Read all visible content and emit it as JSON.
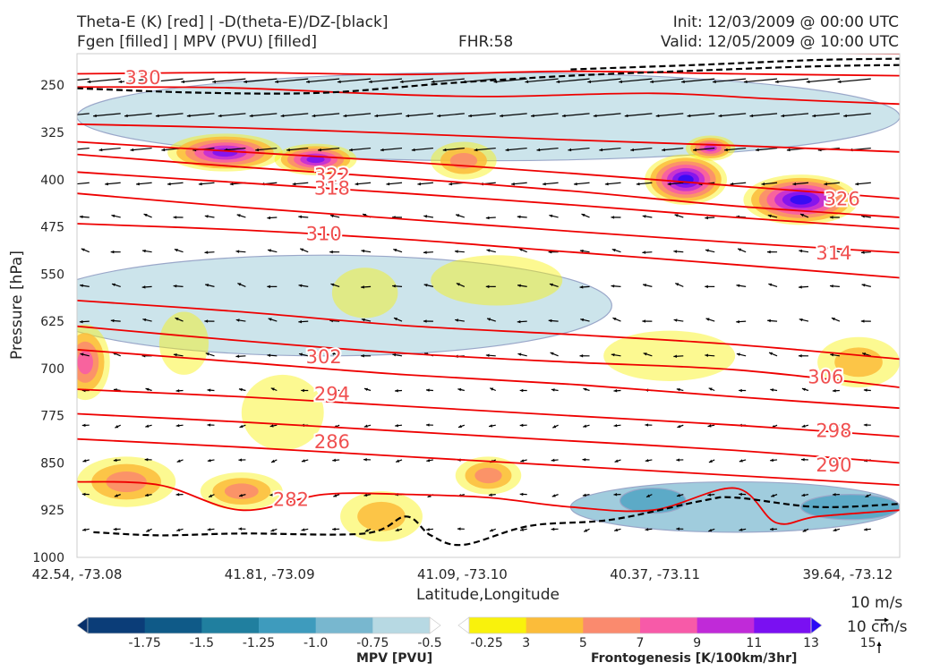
{
  "header": {
    "title_left_1": "Theta-E (K) [red] | -D(theta-E)/DZ-[black]",
    "title_left_2": "Fgen [filled] | MPV (PVU) [filled]",
    "fhr": "FHR:58",
    "init": "Init: 12/03/2009 @ 00:00 UTC",
    "valid": "Valid: 12/05/2009 @ 10:00 UTC"
  },
  "chart_data": {
    "type": "cross-section",
    "xlabel": "Latitude,Longitude",
    "ylabel": "Pressure [hPa]",
    "x_ticks": [
      "42.54, -73.08",
      "41.81, -73.09",
      "41.09, -73.10",
      "40.37, -73.11",
      "39.64, -73.12"
    ],
    "y_ticks": [
      250,
      325,
      400,
      475,
      550,
      625,
      700,
      775,
      850,
      925,
      1000
    ],
    "ylim": [
      200,
      1000
    ],
    "theta_e_labels": [
      {
        "value": "330",
        "x": 0.08,
        "p": 240
      },
      {
        "value": "322",
        "x": 0.31,
        "p": 395
      },
      {
        "value": "318",
        "x": 0.31,
        "p": 415
      },
      {
        "value": "326",
        "x": 0.93,
        "p": 432
      },
      {
        "value": "310",
        "x": 0.3,
        "p": 488
      },
      {
        "value": "314",
        "x": 0.92,
        "p": 518
      },
      {
        "value": "302",
        "x": 0.3,
        "p": 683
      },
      {
        "value": "306",
        "x": 0.91,
        "p": 715
      },
      {
        "value": "294",
        "x": 0.31,
        "p": 742
      },
      {
        "value": "298",
        "x": 0.92,
        "p": 800
      },
      {
        "value": "286",
        "x": 0.31,
        "p": 818
      },
      {
        "value": "290",
        "x": 0.92,
        "p": 855
      },
      {
        "value": "282",
        "x": 0.26,
        "p": 910
      }
    ],
    "theta_e_lines": [
      {
        "x": [
          0,
          0.25,
          0.5,
          0.75,
          1
        ],
        "p": [
          190,
          192,
          195,
          198,
          200
        ]
      },
      {
        "x": [
          0,
          0.2,
          0.4,
          0.6,
          0.8,
          1
        ],
        "p": [
          232,
          230,
          233,
          228,
          232,
          235
        ]
      },
      {
        "x": [
          0,
          0.18,
          0.35,
          0.5,
          0.7,
          0.85,
          1
        ],
        "p": [
          253,
          254,
          263,
          268,
          263,
          272,
          280
        ]
      },
      {
        "x": [
          0,
          0.2,
          0.4,
          0.6,
          0.8,
          1
        ],
        "p": [
          312,
          318,
          327,
          337,
          346,
          356
        ]
      },
      {
        "x": [
          0,
          0.2,
          0.4,
          0.6,
          0.8,
          1
        ],
        "p": [
          340,
          356,
          372,
          390,
          410,
          430
        ]
      },
      {
        "x": [
          0,
          0.2,
          0.4,
          0.6,
          0.8,
          1
        ],
        "p": [
          360,
          380,
          398,
          418,
          442,
          460
        ]
      },
      {
        "x": [
          0,
          0.2,
          0.4,
          0.6,
          0.8,
          1
        ],
        "p": [
          388,
          405,
          422,
          440,
          460,
          478
        ]
      },
      {
        "x": [
          0,
          0.2,
          0.4,
          0.6,
          0.8,
          1
        ],
        "p": [
          422,
          444,
          463,
          482,
          500,
          516
        ]
      },
      {
        "x": [
          0,
          0.2,
          0.4,
          0.6,
          0.8,
          1
        ],
        "p": [
          470,
          480,
          495,
          515,
          535,
          556
        ]
      },
      {
        "x": [
          0,
          0.2,
          0.4,
          0.6,
          0.8,
          1
        ],
        "p": [
          592,
          610,
          632,
          646,
          662,
          685
        ]
      },
      {
        "x": [
          0,
          0.2,
          0.4,
          0.6,
          0.8,
          1
        ],
        "p": [
          633,
          656,
          676,
          690,
          702,
          730
        ]
      },
      {
        "x": [
          0,
          0.2,
          0.4,
          0.6,
          0.8,
          1
        ],
        "p": [
          670,
          690,
          710,
          725,
          745,
          763
        ]
      },
      {
        "x": [
          0,
          0.2,
          0.4,
          0.6,
          0.8,
          1
        ],
        "p": [
          733,
          745,
          760,
          775,
          790,
          808
        ]
      },
      {
        "x": [
          0,
          0.2,
          0.4,
          0.6,
          0.8,
          1
        ],
        "p": [
          772,
          785,
          800,
          815,
          830,
          850
        ]
      },
      {
        "x": [
          0,
          0.2,
          0.4,
          0.6,
          0.8,
          1
        ],
        "p": [
          812,
          825,
          840,
          855,
          870,
          885
        ]
      },
      {
        "x": [
          0,
          0.1,
          0.2,
          0.3,
          0.4,
          0.5,
          0.6,
          0.7,
          0.8,
          0.85,
          0.9,
          1
        ],
        "p": [
          880,
          885,
          925,
          900,
          900,
          905,
          920,
          925,
          890,
          945,
          935,
          925
        ]
      }
    ],
    "dthetae_dz_lines": [
      {
        "x": [
          0,
          0.15,
          0.3,
          0.45,
          0.6,
          0.75,
          0.9,
          1
        ],
        "p": [
          255,
          262,
          262,
          247,
          235,
          227,
          220,
          218
        ]
      },
      {
        "x": [
          0.6,
          0.75,
          0.9,
          1
        ],
        "p": [
          225,
          218,
          210,
          208
        ]
      },
      {
        "x": [
          0.02,
          0.1,
          0.2,
          0.35,
          0.4,
          0.43,
          0.47,
          0.55,
          0.65,
          0.76,
          0.8,
          0.9,
          1
        ],
        "p": [
          960,
          965,
          962,
          962,
          935,
          965,
          980,
          950,
          940,
          910,
          905,
          920,
          915
        ]
      }
    ],
    "fgen_blobs": [
      {
        "x": 0.18,
        "p": 357,
        "rx": 0.07,
        "rp": 30,
        "max": 13
      },
      {
        "x": 0.29,
        "p": 368,
        "rx": 0.05,
        "rp": 25,
        "max": 13
      },
      {
        "x": 0.47,
        "p": 370,
        "rx": 0.04,
        "rp": 30,
        "max": 7
      },
      {
        "x": 0.74,
        "p": 400,
        "rx": 0.05,
        "rp": 40,
        "max": 15
      },
      {
        "x": 0.77,
        "p": 350,
        "rx": 0.03,
        "rp": 20,
        "max": 11
      },
      {
        "x": 0.88,
        "p": 432,
        "rx": 0.07,
        "rp": 40,
        "max": 15
      },
      {
        "x": 0.01,
        "p": 690,
        "rx": 0.03,
        "rp": 60,
        "max": 9
      },
      {
        "x": 0.06,
        "p": 880,
        "rx": 0.06,
        "rp": 40,
        "max": 7
      },
      {
        "x": 0.2,
        "p": 895,
        "rx": 0.05,
        "rp": 30,
        "max": 7
      },
      {
        "x": 0.37,
        "p": 935,
        "rx": 0.05,
        "rp": 40,
        "max": 5
      },
      {
        "x": 0.5,
        "p": 870,
        "rx": 0.04,
        "rp": 30,
        "max": 7
      },
      {
        "x": 0.35,
        "p": 580,
        "rx": 0.04,
        "rp": 40,
        "max": 3
      },
      {
        "x": 0.51,
        "p": 560,
        "rx": 0.08,
        "rp": 40,
        "max": 3
      },
      {
        "x": 0.72,
        "p": 680,
        "rx": 0.08,
        "rp": 40,
        "max": 3
      },
      {
        "x": 0.95,
        "p": 690,
        "rx": 0.05,
        "rp": 40,
        "max": 5
      },
      {
        "x": 0.25,
        "p": 770,
        "rx": 0.05,
        "rp": 60,
        "max": 3
      },
      {
        "x": 0.13,
        "p": 660,
        "rx": 0.03,
        "rp": 50,
        "max": 3
      }
    ],
    "mpv_blobs": [
      {
        "x": 0.5,
        "p": 300,
        "rx": 0.5,
        "rp": 70,
        "min": -0.25
      },
      {
        "x": 0.3,
        "p": 600,
        "rx": 0.35,
        "rp": 80,
        "min": -0.25
      },
      {
        "x": 0.8,
        "p": 920,
        "rx": 0.2,
        "rp": 40,
        "min": -0.5
      },
      {
        "x": 0.7,
        "p": 910,
        "rx": 0.04,
        "rp": 20,
        "min": -0.75
      },
      {
        "x": 0.94,
        "p": 920,
        "rx": 0.06,
        "rp": 20,
        "min": -0.75
      }
    ],
    "mpv_colorbar": {
      "label": "MPV [PVU]",
      "ticks": [
        "-1.75",
        "-1.5",
        "-1.25",
        "-1.0",
        "-0.75",
        "-0.5",
        "-0.25"
      ],
      "colors": [
        "#08306b",
        "#0b3d78",
        "#0f5a88",
        "#207f9f",
        "#3e9bbd",
        "#78b7cf",
        "#b7d9e3",
        "#ffffff"
      ]
    },
    "fgen_colorbar": {
      "label": "Frontogenesis [K/100km/3hr]",
      "ticks": [
        "3",
        "5",
        "7",
        "9",
        "11",
        "13",
        "15"
      ],
      "colors": [
        "#ffffff",
        "#f9f20c",
        "#fbbc3a",
        "#fa8a6e",
        "#f75aa8",
        "#c02ad8",
        "#7a10f2",
        "#2a0af5"
      ]
    },
    "wind_reference": {
      "label_1": "10 m/s",
      "label_2": "10 cm/s"
    },
    "colors": {
      "theta_e": "#ee0000",
      "dthetae_dz": "#000000",
      "mpv_outline": "#9aa7c9",
      "label_theta": "#f05050"
    }
  }
}
